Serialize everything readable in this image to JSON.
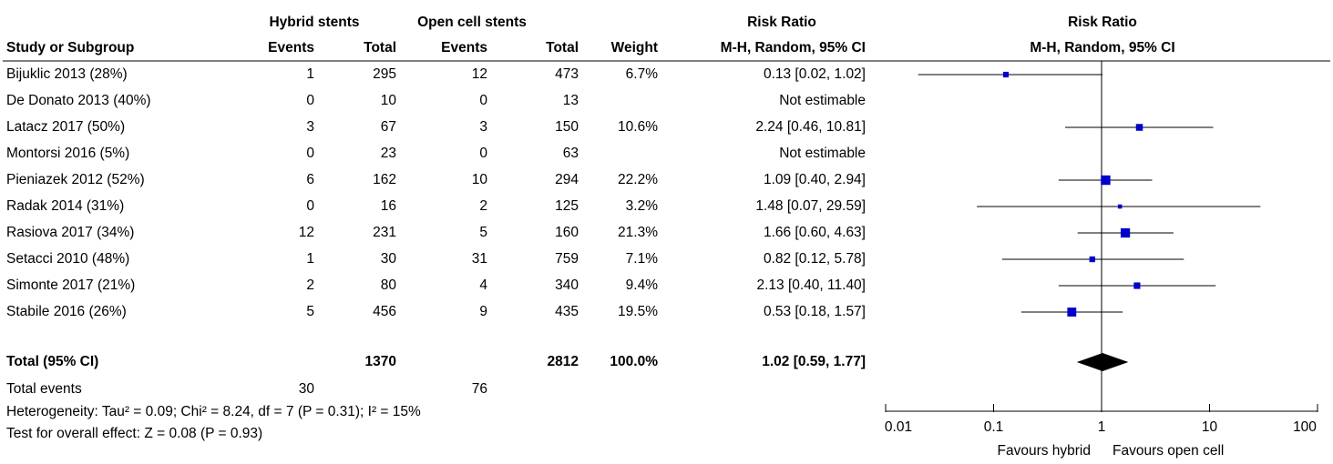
{
  "chart_data": {
    "type": "forest",
    "group_headers": [
      "Hybrid stents",
      "Open cell stents",
      "Risk Ratio",
      "Risk Ratio"
    ],
    "column_headers": [
      "Study or Subgroup",
      "Events",
      "Total",
      "Events",
      "Total",
      "Weight",
      "M-H, Random, 95% CI",
      "M-H, Random, 95% CI"
    ],
    "categories": [
      "Bijuklic 2013 (28%)",
      "De Donato 2013 (40%)",
      "Latacz 2017 (50%)",
      "Montorsi 2016 (5%)",
      "Pieniazek 2012 (52%)",
      "Radak 2014 (31%)",
      "Rasiova 2017 (34%)",
      "Setacci 2010 (48%)",
      "Simonte 2017 (21%)",
      "Stabile 2016 (26%)"
    ],
    "hybrid_events": [
      1,
      0,
      3,
      0,
      6,
      0,
      12,
      1,
      2,
      5
    ],
    "hybrid_total": [
      295,
      10,
      67,
      23,
      162,
      16,
      231,
      30,
      80,
      456
    ],
    "open_events": [
      12,
      0,
      3,
      0,
      10,
      2,
      5,
      31,
      4,
      9
    ],
    "open_total": [
      473,
      13,
      150,
      63,
      294,
      125,
      160,
      759,
      340,
      435
    ],
    "weight": [
      6.7,
      null,
      10.6,
      null,
      22.2,
      3.2,
      21.3,
      7.1,
      9.4,
      19.5
    ],
    "weight_labels": [
      "6.7%",
      null,
      "10.6%",
      null,
      "22.2%",
      "3.2%",
      "21.3%",
      "7.1%",
      "9.4%",
      "19.5%"
    ],
    "values": [
      0.13,
      null,
      2.24,
      null,
      1.09,
      1.48,
      1.66,
      0.82,
      2.13,
      0.53
    ],
    "ci_low": [
      0.02,
      null,
      0.46,
      null,
      0.4,
      0.07,
      0.6,
      0.12,
      0.4,
      0.18
    ],
    "ci_high": [
      1.02,
      null,
      10.81,
      null,
      2.94,
      29.59,
      4.63,
      5.78,
      11.4,
      1.57
    ],
    "value_labels": [
      "0.13 [0.02, 1.02]",
      "Not estimable",
      "2.24 [0.46, 10.81]",
      "Not estimable",
      "1.09 [0.40, 2.94]",
      "1.48 [0.07, 29.59]",
      "1.66 [0.60, 4.63]",
      "0.82 [0.12, 5.78]",
      "2.13 [0.40, 11.40]",
      "0.53 [0.18, 1.57]"
    ],
    "total": {
      "label": "Total (95% CI)",
      "hybrid_total": 1370,
      "open_total": 2812,
      "weight_label": "100.0%",
      "value": 1.02,
      "ci_low": 0.59,
      "ci_high": 1.77,
      "value_label": "1.02 [0.59, 1.77]"
    },
    "total_events": {
      "label": "Total events",
      "hybrid": 30,
      "open": 76
    },
    "heterogeneity": "Heterogeneity: Tau² = 0.09; Chi² = 8.24, df = 7 (P = 0.31); I² = 15%",
    "overall_effect": "Test for overall effect: Z = 0.08 (P = 0.93)",
    "xscale": "log",
    "xlim": [
      0.01,
      100
    ],
    "xticks": [
      0.01,
      0.1,
      1,
      10,
      100
    ],
    "x_left_label": "Favours hybrid",
    "x_right_label": "Favours open cell",
    "color": "#0000cc",
    "diamond_color": "#000000"
  }
}
